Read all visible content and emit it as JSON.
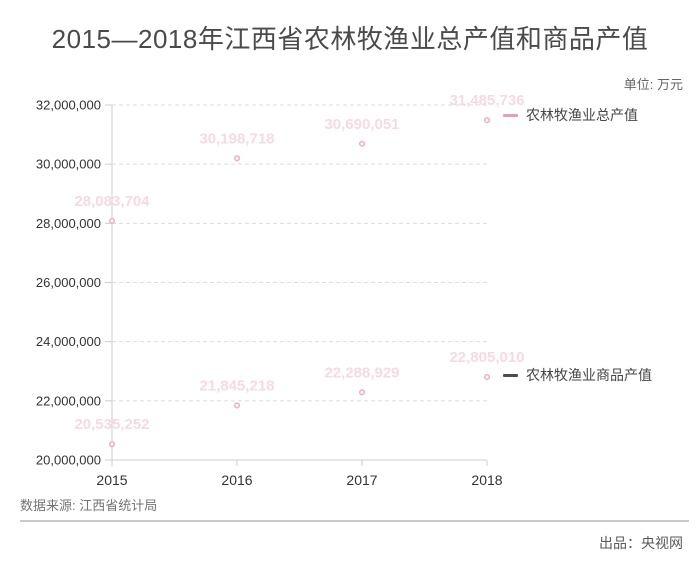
{
  "title": "2015—2018年江西省农林牧渔业总产值和商品产值",
  "unit_label": "单位: 万元",
  "source_label": "数据来源: 江西省统计局",
  "credit_label": "出品：央视网",
  "legend": [
    {
      "label": "农林牧渔业总产值"
    },
    {
      "label": "农林牧渔业商品产值"
    }
  ],
  "colors": {
    "series1_legend": "#e8a0b0",
    "series2_legend": "#4d4d4d",
    "data_label": "#f5dbe1",
    "dot_stroke": "#e9b0be",
    "dot_fill": "#ffffff",
    "axis": "#cccccc",
    "grid": "#dddddd",
    "tick_text": "#333333"
  },
  "chart_data": {
    "type": "line",
    "title": "2015—2018年江西省农林牧渔业总产值和商品产值",
    "xlabel": "",
    "ylabel": "万元",
    "categories": [
      "2015",
      "2016",
      "2017",
      "2018"
    ],
    "series": [
      {
        "name": "农林牧渔业总产值",
        "values": [
          28083704,
          30198718,
          30690051,
          31485736
        ],
        "labels": [
          "28,083,704",
          "30,198,718",
          "30,690,051",
          "31,485,736"
        ]
      },
      {
        "name": "农林牧渔业商品产值",
        "values": [
          20535252,
          21845218,
          22288929,
          22805010
        ],
        "labels": [
          "20,535,252",
          "21,845,218",
          "22,288,929",
          "22,805,010"
        ]
      }
    ],
    "ylim": [
      20000000,
      32000000
    ],
    "yticks": [
      {
        "value": 20000000,
        "label": "20,000,000"
      },
      {
        "value": 22000000,
        "label": "22,000,000"
      },
      {
        "value": 24000000,
        "label": "24,000,000"
      },
      {
        "value": 26000000,
        "label": "26,000,000"
      },
      {
        "value": 28000000,
        "label": "28,000,000"
      },
      {
        "value": 30000000,
        "label": "30,000,000"
      },
      {
        "value": 32000000,
        "label": "32,000,000"
      }
    ],
    "grid": true,
    "grid_style": "dashed",
    "legend_position": "right-of-series"
  }
}
